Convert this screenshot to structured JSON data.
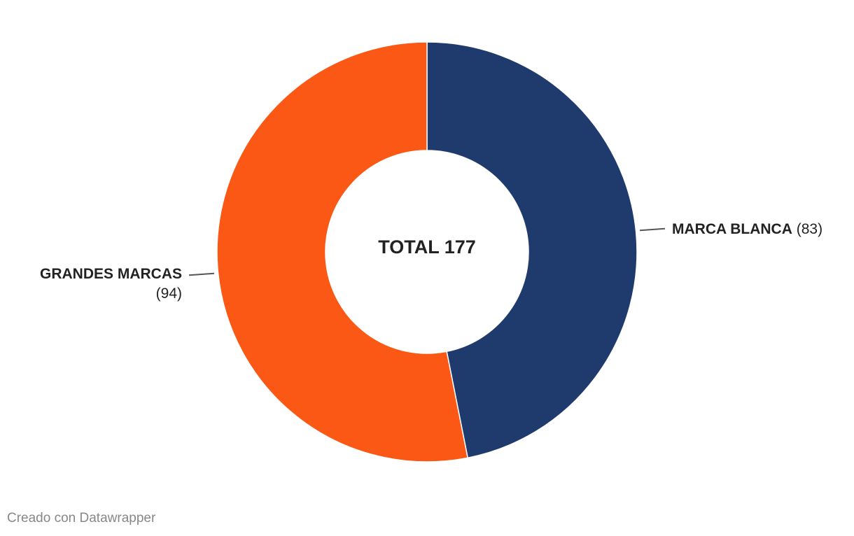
{
  "chart_data": {
    "type": "pie",
    "variant": "donut",
    "center_label": "TOTAL 177",
    "slices": [
      {
        "label": "MARCA BLANCA",
        "value": 83,
        "value_text": "(83)",
        "color": "#1f3a6d"
      },
      {
        "label": "GRANDES MARCAS",
        "value": 94,
        "value_text": "(94)",
        "color": "#fc5815"
      }
    ]
  },
  "footer": "Creado con Datawrapper"
}
